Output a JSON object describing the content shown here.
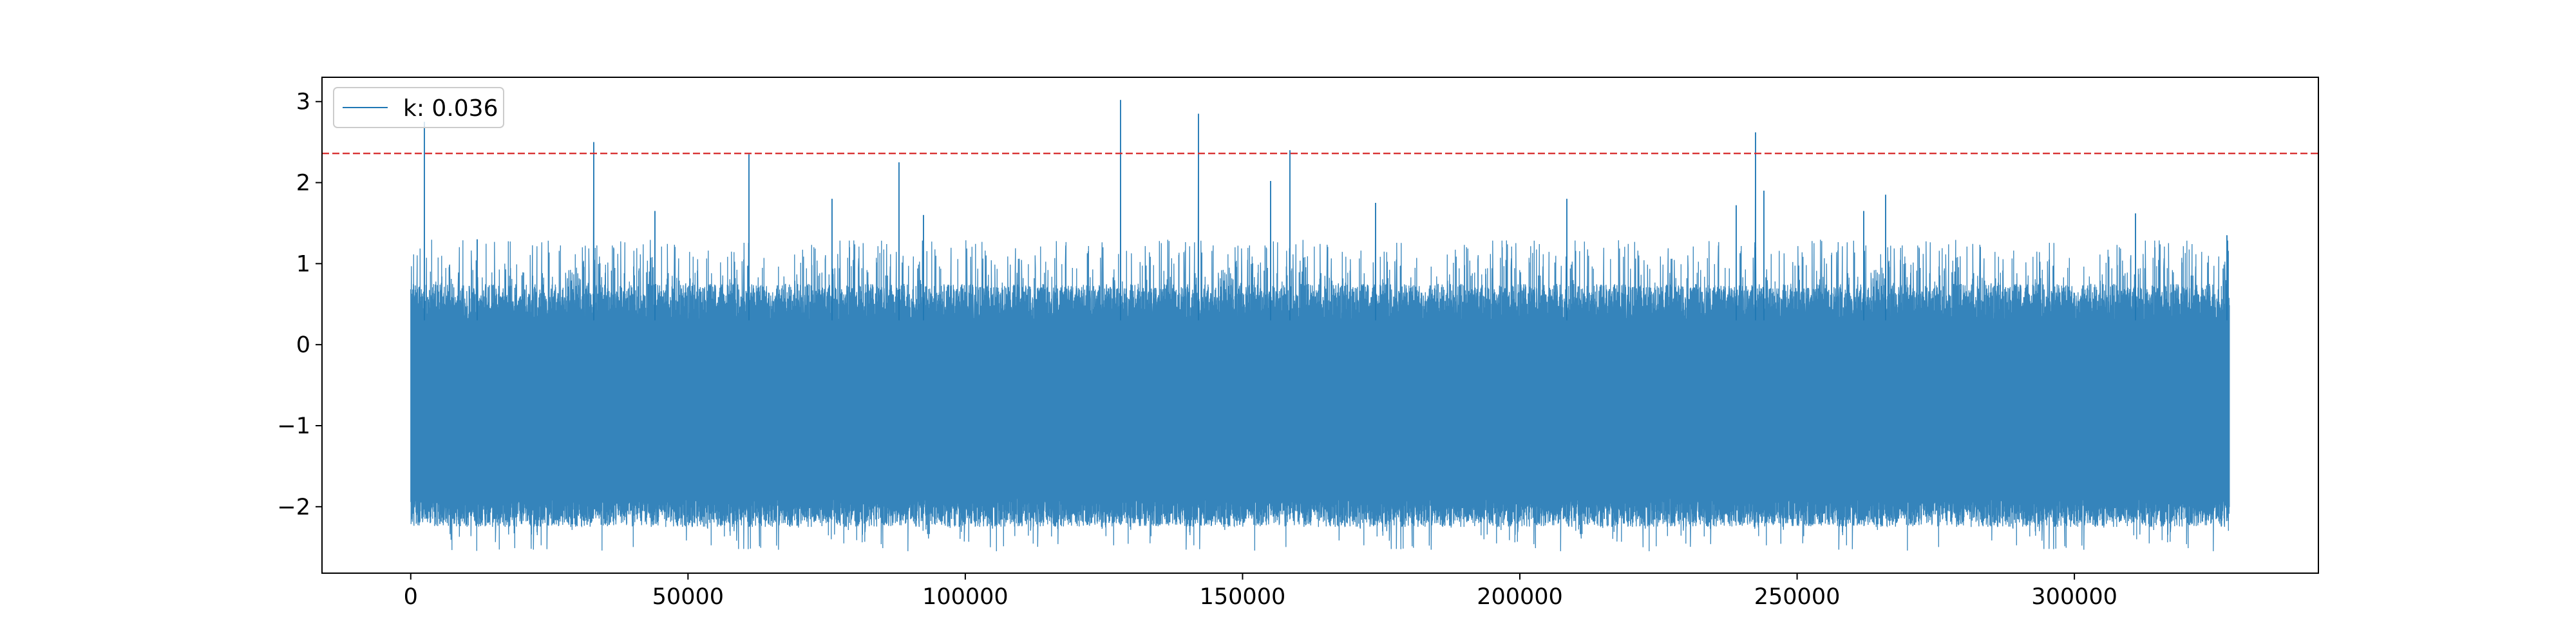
{
  "chart_data": {
    "type": "line",
    "title": "",
    "xlabel": "",
    "ylabel": "",
    "xlim": [
      -16000,
      344000
    ],
    "ylim": [
      -2.82,
      3.3
    ],
    "x_ticks": [
      0,
      50000,
      100000,
      150000,
      200000,
      250000,
      300000
    ],
    "x_tick_labels": [
      "0",
      "50000",
      "100000",
      "150000",
      "200000",
      "250000",
      "300000"
    ],
    "y_ticks": [
      -2,
      -1,
      0,
      1,
      2,
      3
    ],
    "y_tick_labels": [
      "−2",
      "−1",
      "0",
      "1",
      "2",
      "3"
    ],
    "grid": false,
    "legend": {
      "placement": "top-left",
      "label": "k: 0.036"
    },
    "series": [
      {
        "name": "k: 0.036",
        "color": "#1f77b4",
        "n_points": 328000,
        "x_range": [
          0,
          328000
        ],
        "baseline_range": [
          -2.25,
          0.75
        ],
        "min_value": -2.55,
        "peaks": [
          {
            "x": 2500,
            "y": 2.75
          },
          {
            "x": 12000,
            "y": 1.3
          },
          {
            "x": 33000,
            "y": 2.5
          },
          {
            "x": 44000,
            "y": 1.65
          },
          {
            "x": 61000,
            "y": 2.35
          },
          {
            "x": 76000,
            "y": 1.8
          },
          {
            "x": 88000,
            "y": 2.25
          },
          {
            "x": 92500,
            "y": 1.6
          },
          {
            "x": 128000,
            "y": 3.02
          },
          {
            "x": 142000,
            "y": 2.85
          },
          {
            "x": 155000,
            "y": 2.02
          },
          {
            "x": 158500,
            "y": 2.4
          },
          {
            "x": 174000,
            "y": 1.75
          },
          {
            "x": 208500,
            "y": 1.8
          },
          {
            "x": 239000,
            "y": 1.72
          },
          {
            "x": 242500,
            "y": 2.62
          },
          {
            "x": 244000,
            "y": 1.9
          },
          {
            "x": 262000,
            "y": 1.65
          },
          {
            "x": 266000,
            "y": 1.85
          },
          {
            "x": 311000,
            "y": 1.62
          },
          {
            "x": 327500,
            "y": 1.35
          }
        ]
      }
    ],
    "threshold": {
      "y": 2.36,
      "color": "#d62728",
      "style": "dashed"
    }
  }
}
